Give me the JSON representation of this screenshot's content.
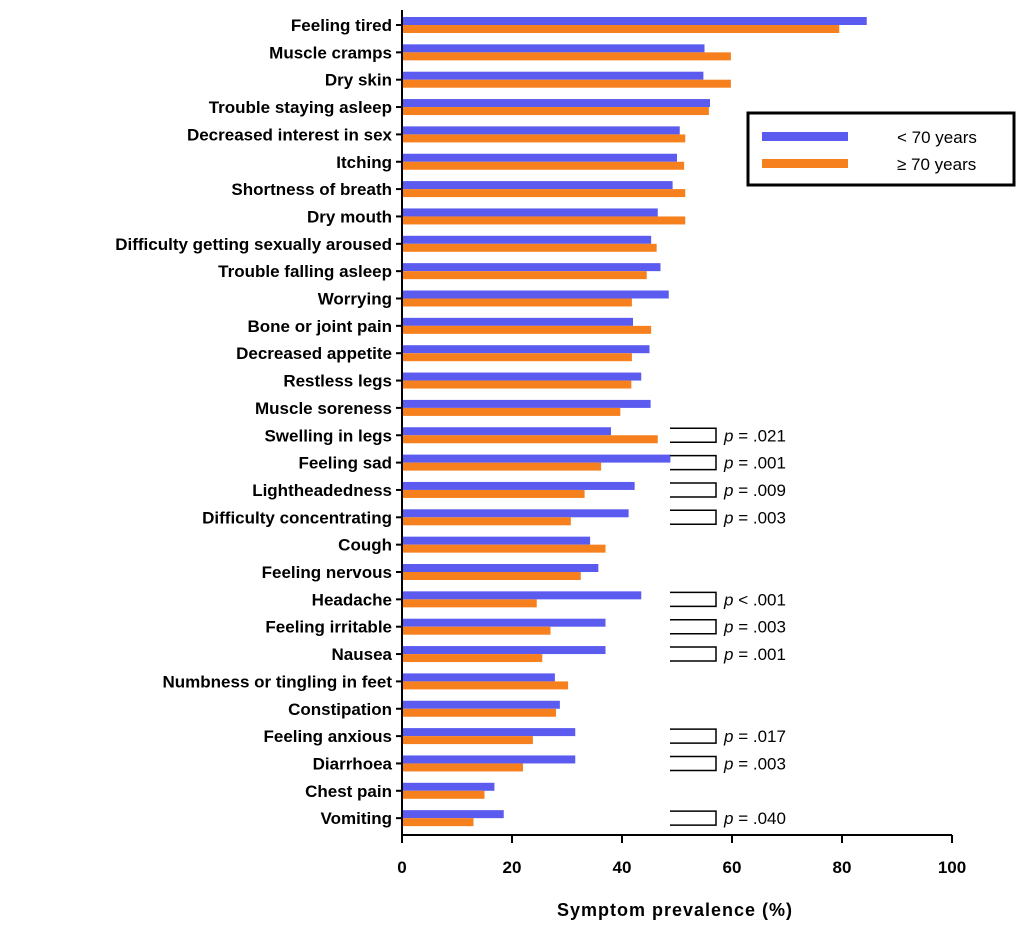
{
  "chart_data": {
    "type": "bar",
    "orientation": "horizontal",
    "categories": [
      "Feeling tired",
      "Muscle cramps",
      "Dry skin",
      "Trouble staying asleep",
      "Decreased interest in sex",
      "Itching",
      "Shortness of breath",
      "Dry mouth",
      "Difficulty getting sexually aroused",
      "Trouble falling asleep",
      "Worrying",
      "Bone or joint pain",
      "Decreased appetite",
      "Restless legs",
      "Muscle soreness",
      "Swelling in legs",
      "Feeling sad",
      "Lightheadedness",
      "Difficulty concentrating",
      "Cough",
      "Feeling nervous",
      "Headache",
      "Feeling irritable",
      "Nausea",
      "Numbness or tingling in feet",
      "Constipation",
      "Feeling anxious",
      "Diarrhoea",
      "Chest pain",
      "Vomiting"
    ],
    "series": [
      {
        "name": "< 70 years",
        "color": "#5b5bf0",
        "values": [
          84.5,
          55,
          54.8,
          56,
          50.5,
          50,
          49.2,
          46.5,
          45.3,
          47,
          48.5,
          42,
          45,
          43.5,
          45.2,
          38,
          48.8,
          42.3,
          41.2,
          34.2,
          35.7,
          43.5,
          37,
          37,
          27.8,
          28.7,
          31.5,
          31.5,
          16.8,
          18.5
        ]
      },
      {
        "name": "≥ 70 years",
        "color": "#f7801e",
        "values": [
          79.5,
          59.8,
          59.8,
          55.8,
          51.5,
          51.3,
          51.5,
          51.5,
          46.3,
          44.5,
          41.8,
          45.3,
          41.8,
          41.7,
          39.7,
          46.5,
          36.2,
          33.2,
          30.7,
          37,
          32.5,
          24.5,
          27,
          25.5,
          30.2,
          28,
          23.8,
          22,
          15,
          13
        ]
      }
    ],
    "annotations": [
      {
        "category": "Swelling in legs",
        "p": "p",
        "text": " = .021"
      },
      {
        "category": "Feeling sad",
        "p": "p",
        "text": " = .001"
      },
      {
        "category": "Lightheadedness",
        "p": "p",
        "text": " = .009"
      },
      {
        "category": "Difficulty concentrating",
        "p": "p",
        "text": " = .003"
      },
      {
        "category": "Headache",
        "p": "p",
        "text": " < .001"
      },
      {
        "category": "Feeling irritable",
        "p": "p",
        "text": " = .003"
      },
      {
        "category": "Nausea",
        "p": "p",
        "text": " = .001"
      },
      {
        "category": "Feeling anxious",
        "p": "p",
        "text": " = .017"
      },
      {
        "category": "Diarrhoea",
        "p": "p",
        "text": " = .003"
      },
      {
        "category": "Vomiting",
        "p": "p",
        "text": " = .040"
      }
    ],
    "xlabel": "Symptom prevalence  (%)",
    "xlim": [
      0,
      100
    ],
    "xticks": [
      0,
      20,
      40,
      60,
      80,
      100
    ],
    "grid": false,
    "legend": "top-right"
  }
}
